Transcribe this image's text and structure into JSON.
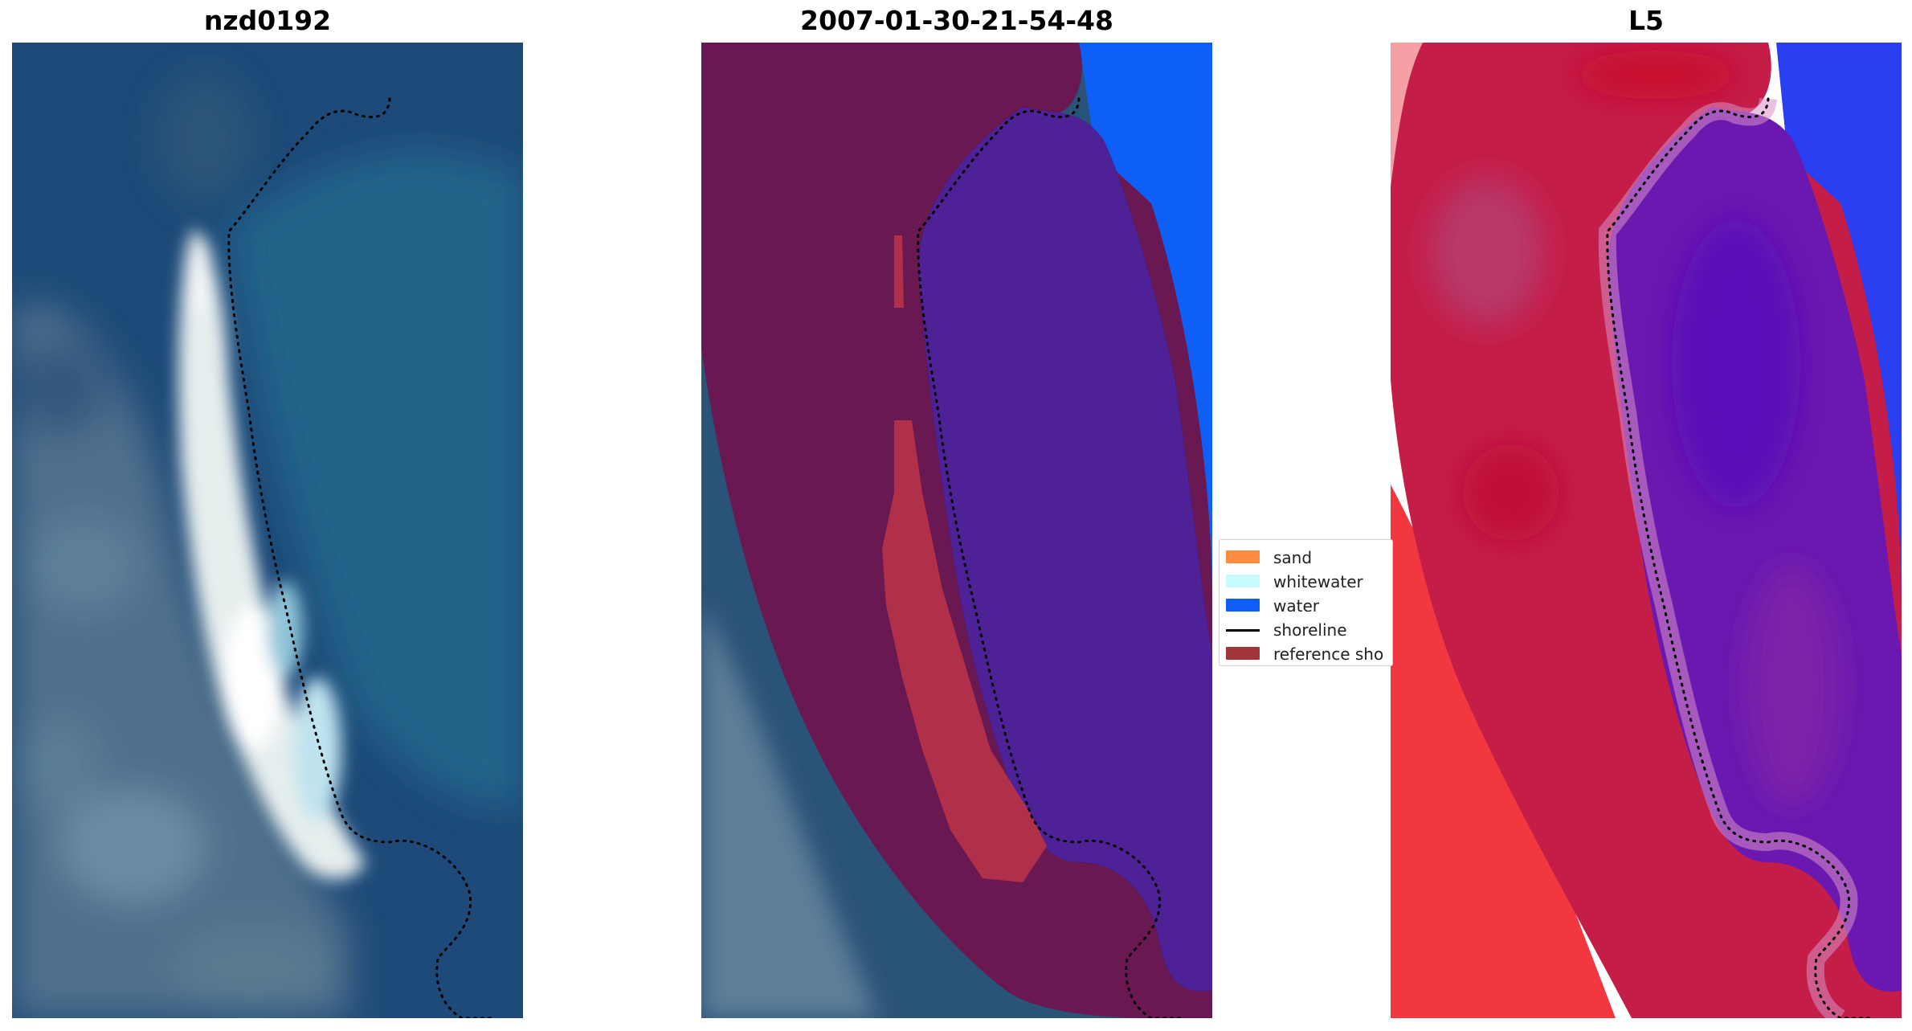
{
  "panels": [
    {
      "title": "nzd0192"
    },
    {
      "title": "2007-01-30-21-54-48"
    },
    {
      "title": "L5"
    }
  ],
  "legend": {
    "items": [
      {
        "label": "sand",
        "color": "#ff8c40",
        "kind": "patch"
      },
      {
        "label": "whitewater",
        "color": "#c8fbfb",
        "kind": "patch"
      },
      {
        "label": "water",
        "color": "#0f5ef5",
        "kind": "patch"
      },
      {
        "label": "shoreline",
        "color": "#000000",
        "kind": "line"
      },
      {
        "label": "reference sho",
        "color": "#a0363c",
        "kind": "patch"
      }
    ]
  },
  "colors": {
    "satellite_water": "#1f4a74",
    "satellite_sand": "#e8f0f0",
    "reference_band": "#6a1850",
    "classified_water_overlay": "#4f1f95",
    "classified_ocean": "#0d60f6",
    "classified_sand": "#b03048",
    "index_positive": "#c0123c",
    "index_negative": "#5a10b0",
    "index_ocean": "#2838f0",
    "index_land": "#f2303a"
  },
  "icons": [
    "dotted-shoreline"
  ]
}
